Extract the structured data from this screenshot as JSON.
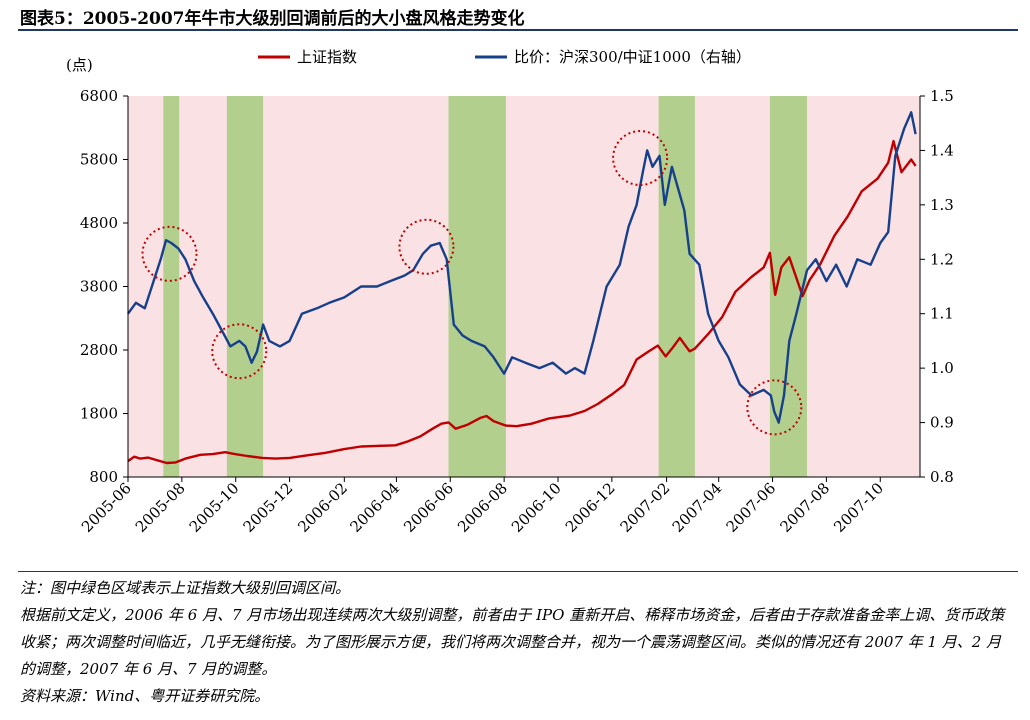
{
  "figure_title": "图表5：2005-2007年牛市大级别回调前后的大小盘风格走势变化",
  "notes": [
    "注：图中绿色区域表示上证指数大级别回调区间。",
    "根据前文定义，2006 年 6 月、7 月市场出现连续两次大级别调整，前者由于 IPO 重新开启、稀释市场资金，后者由于存款准备金率上调、货币政策收紧；两次调整时间临近，几乎无缝衔接。为了图形展示方便，我们将两次调整合并，视为一个震荡调整区间。类似的情况还有 2007 年 1 月、2 月的调整，2007 年 6 月、7 月的调整。",
    "资料来源：Wind、粤开证券研究院。"
  ],
  "chart_data": {
    "type": "line",
    "left_axis_label": "(点)",
    "ylim": [
      800,
      6800
    ],
    "y_ticks": [
      800,
      1800,
      2800,
      3800,
      4800,
      5800,
      6800
    ],
    "y2lim": [
      0.8,
      1.5
    ],
    "y2_ticks": [
      "0.8",
      "0.9",
      "1.0",
      "1.1",
      "1.2",
      "1.3",
      "1.4",
      "1.5"
    ],
    "x_range": [
      "2005-06-01",
      "2007-11-15"
    ],
    "x_ticks": [
      "2005-06",
      "2005-08",
      "2005-10",
      "2005-12",
      "2006-02",
      "2006-04",
      "2006-06",
      "2006-08",
      "2006-10",
      "2006-12",
      "2007-02",
      "2007-04",
      "2007-06",
      "2007-08",
      "2007-10"
    ],
    "colors": {
      "background": "#f9e1e4",
      "shade": "#b2cf8e",
      "primary": "#c00000",
      "ratio": "#17408b",
      "circle": "#c00000"
    },
    "shaded_periods": [
      [
        "2005-07-11",
        "2005-07-29"
      ],
      [
        "2005-09-21",
        "2005-11-01"
      ],
      [
        "2006-05-30",
        "2006-08-03"
      ],
      [
        "2007-01-23",
        "2007-03-05"
      ],
      [
        "2007-05-29",
        "2007-07-10"
      ]
    ],
    "highlight_circles": [
      {
        "date": "2005-07-18",
        "value": 1.21
      },
      {
        "date": "2005-10-05",
        "value": 1.031
      },
      {
        "date": "2006-05-05",
        "value": 1.223
      },
      {
        "date": "2007-01-02",
        "value": 1.386
      },
      {
        "date": "2007-06-03",
        "value": 0.928
      }
    ],
    "series": [
      {
        "name": "上证指数",
        "axis": "left",
        "color": "#c00000",
        "points": [
          [
            "2005-06-01",
            1050
          ],
          [
            "2005-06-08",
            1120
          ],
          [
            "2005-06-15",
            1090
          ],
          [
            "2005-06-24",
            1105
          ],
          [
            "2005-07-05",
            1060
          ],
          [
            "2005-07-15",
            1020
          ],
          [
            "2005-07-25",
            1030
          ],
          [
            "2005-08-05",
            1090
          ],
          [
            "2005-08-22",
            1150
          ],
          [
            "2005-09-05",
            1160
          ],
          [
            "2005-09-19",
            1190
          ],
          [
            "2005-09-30",
            1160
          ],
          [
            "2005-10-14",
            1130
          ],
          [
            "2005-10-31",
            1100
          ],
          [
            "2005-11-15",
            1090
          ],
          [
            "2005-12-01",
            1100
          ],
          [
            "2005-12-20",
            1140
          ],
          [
            "2006-01-10",
            1180
          ],
          [
            "2006-02-01",
            1240
          ],
          [
            "2006-02-20",
            1280
          ],
          [
            "2006-03-10",
            1290
          ],
          [
            "2006-03-31",
            1300
          ],
          [
            "2006-04-14",
            1360
          ],
          [
            "2006-04-28",
            1440
          ],
          [
            "2006-05-12",
            1560
          ],
          [
            "2006-05-22",
            1640
          ],
          [
            "2006-05-30",
            1660
          ],
          [
            "2006-06-07",
            1560
          ],
          [
            "2006-06-20",
            1620
          ],
          [
            "2006-07-05",
            1730
          ],
          [
            "2006-07-12",
            1760
          ],
          [
            "2006-07-20",
            1680
          ],
          [
            "2006-08-03",
            1610
          ],
          [
            "2006-08-15",
            1600
          ],
          [
            "2006-09-01",
            1640
          ],
          [
            "2006-09-20",
            1720
          ],
          [
            "2006-10-15",
            1770
          ],
          [
            "2006-10-31",
            1840
          ],
          [
            "2006-11-15",
            1950
          ],
          [
            "2006-12-01",
            2100
          ],
          [
            "2006-12-15",
            2250
          ],
          [
            "2006-12-29",
            2650
          ],
          [
            "2007-01-12",
            2780
          ],
          [
            "2007-01-22",
            2870
          ],
          [
            "2007-01-31",
            2700
          ],
          [
            "2007-02-08",
            2840
          ],
          [
            "2007-02-16",
            2990
          ],
          [
            "2007-02-27",
            2780
          ],
          [
            "2007-03-05",
            2820
          ],
          [
            "2007-03-20",
            3050
          ],
          [
            "2007-04-05",
            3320
          ],
          [
            "2007-04-20",
            3720
          ],
          [
            "2007-05-08",
            3950
          ],
          [
            "2007-05-22",
            4100
          ],
          [
            "2007-05-29",
            4330
          ],
          [
            "2007-06-04",
            3670
          ],
          [
            "2007-06-11",
            4100
          ],
          [
            "2007-06-20",
            4260
          ],
          [
            "2007-07-05",
            3650
          ],
          [
            "2007-07-13",
            3900
          ],
          [
            "2007-07-25",
            4150
          ],
          [
            "2007-08-10",
            4600
          ],
          [
            "2007-08-25",
            4900
          ],
          [
            "2007-09-10",
            5300
          ],
          [
            "2007-09-28",
            5500
          ],
          [
            "2007-10-10",
            5750
          ],
          [
            "2007-10-16",
            6090
          ],
          [
            "2007-10-25",
            5600
          ],
          [
            "2007-11-05",
            5800
          ],
          [
            "2007-11-10",
            5700
          ]
        ]
      },
      {
        "name": "比价：沪深300/中证1000（右轴）",
        "axis": "right",
        "color": "#17408b",
        "points": [
          [
            "2005-06-01",
            1.1
          ],
          [
            "2005-06-10",
            1.12
          ],
          [
            "2005-06-20",
            1.11
          ],
          [
            "2005-06-30",
            1.16
          ],
          [
            "2005-07-08",
            1.2
          ],
          [
            "2005-07-14",
            1.235
          ],
          [
            "2005-07-20",
            1.23
          ],
          [
            "2005-07-28",
            1.22
          ],
          [
            "2005-08-05",
            1.2
          ],
          [
            "2005-08-15",
            1.16
          ],
          [
            "2005-08-25",
            1.13
          ],
          [
            "2005-09-05",
            1.1
          ],
          [
            "2005-09-15",
            1.07
          ],
          [
            "2005-09-25",
            1.04
          ],
          [
            "2005-10-05",
            1.05
          ],
          [
            "2005-10-12",
            1.04
          ],
          [
            "2005-10-19",
            1.01
          ],
          [
            "2005-10-25",
            1.03
          ],
          [
            "2005-11-01",
            1.08
          ],
          [
            "2005-11-08",
            1.05
          ],
          [
            "2005-11-20",
            1.04
          ],
          [
            "2005-12-01",
            1.05
          ],
          [
            "2005-12-15",
            1.1
          ],
          [
            "2006-01-01",
            1.11
          ],
          [
            "2006-01-15",
            1.12
          ],
          [
            "2006-02-01",
            1.13
          ],
          [
            "2006-02-20",
            1.15
          ],
          [
            "2006-03-10",
            1.15
          ],
          [
            "2006-03-25",
            1.16
          ],
          [
            "2006-04-10",
            1.17
          ],
          [
            "2006-04-20",
            1.18
          ],
          [
            "2006-05-01",
            1.21
          ],
          [
            "2006-05-10",
            1.225
          ],
          [
            "2006-05-20",
            1.23
          ],
          [
            "2006-05-28",
            1.2
          ],
          [
            "2006-06-05",
            1.08
          ],
          [
            "2006-06-15",
            1.06
          ],
          [
            "2006-06-25",
            1.05
          ],
          [
            "2006-07-10",
            1.04
          ],
          [
            "2006-07-20",
            1.02
          ],
          [
            "2006-08-01",
            0.99
          ],
          [
            "2006-08-10",
            1.02
          ],
          [
            "2006-08-25",
            1.01
          ],
          [
            "2006-09-10",
            1.0
          ],
          [
            "2006-09-25",
            1.01
          ],
          [
            "2006-10-10",
            0.99
          ],
          [
            "2006-10-20",
            1.0
          ],
          [
            "2006-10-31",
            0.99
          ],
          [
            "2006-11-10",
            1.05
          ],
          [
            "2006-11-25",
            1.15
          ],
          [
            "2006-12-10",
            1.19
          ],
          [
            "2006-12-20",
            1.26
          ],
          [
            "2006-12-29",
            1.3
          ],
          [
            "2007-01-05",
            1.36
          ],
          [
            "2007-01-10",
            1.4
          ],
          [
            "2007-01-16",
            1.37
          ],
          [
            "2007-01-24",
            1.39
          ],
          [
            "2007-01-30",
            1.3
          ],
          [
            "2007-02-07",
            1.37
          ],
          [
            "2007-02-14",
            1.33
          ],
          [
            "2007-02-21",
            1.29
          ],
          [
            "2007-02-27",
            1.21
          ],
          [
            "2007-03-10",
            1.19
          ],
          [
            "2007-03-20",
            1.1
          ],
          [
            "2007-04-01",
            1.05
          ],
          [
            "2007-04-12",
            1.02
          ],
          [
            "2007-04-25",
            0.97
          ],
          [
            "2007-05-08",
            0.95
          ],
          [
            "2007-05-22",
            0.96
          ],
          [
            "2007-05-30",
            0.95
          ],
          [
            "2007-06-03",
            0.92
          ],
          [
            "2007-06-08",
            0.9
          ],
          [
            "2007-06-14",
            0.95
          ],
          [
            "2007-06-20",
            1.05
          ],
          [
            "2007-06-28",
            1.1
          ],
          [
            "2007-07-10",
            1.18
          ],
          [
            "2007-07-20",
            1.2
          ],
          [
            "2007-08-01",
            1.16
          ],
          [
            "2007-08-12",
            1.19
          ],
          [
            "2007-08-24",
            1.15
          ],
          [
            "2007-09-05",
            1.2
          ],
          [
            "2007-09-20",
            1.19
          ],
          [
            "2007-10-01",
            1.23
          ],
          [
            "2007-10-10",
            1.25
          ],
          [
            "2007-10-18",
            1.39
          ],
          [
            "2007-10-28",
            1.44
          ],
          [
            "2007-11-05",
            1.47
          ],
          [
            "2007-11-10",
            1.43
          ]
        ]
      }
    ]
  }
}
